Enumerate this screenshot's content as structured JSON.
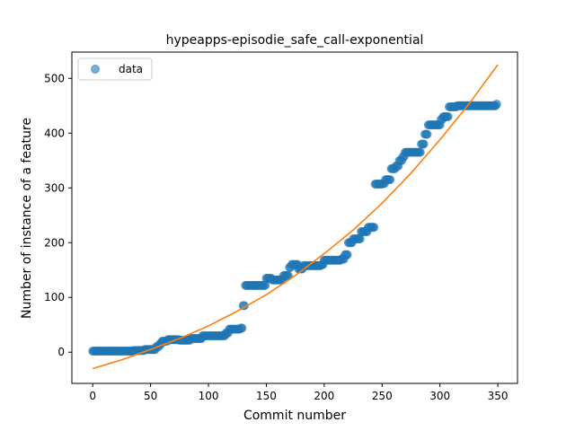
{
  "chart_data": {
    "type": "scatter",
    "title": "hypeapps-episodie_safe_call-exponential",
    "xlabel": "Commit number",
    "ylabel": "Number of instance of a feature",
    "xlim": [
      -18,
      367
    ],
    "ylim": [
      -57,
      548
    ],
    "xticks": [
      0,
      50,
      100,
      150,
      200,
      250,
      300,
      350
    ],
    "yticks": [
      0,
      100,
      200,
      300,
      400,
      500
    ],
    "grid": false,
    "legend_position": "upper-left",
    "legend": [
      {
        "label": "data",
        "marker": "circle",
        "color": "#1f77b4"
      }
    ],
    "data_color": "#1f77b4",
    "fit_color": "#ff7f0e",
    "data_steps": [
      [
        0,
        2
      ],
      [
        35,
        3
      ],
      [
        45,
        5
      ],
      [
        55,
        10
      ],
      [
        58,
        15
      ],
      [
        60,
        20
      ],
      [
        65,
        23
      ],
      [
        75,
        22
      ],
      [
        85,
        25
      ],
      [
        95,
        30
      ],
      [
        115,
        35
      ],
      [
        118,
        42
      ],
      [
        128,
        44
      ],
      [
        130,
        85
      ],
      [
        132,
        122
      ],
      [
        145,
        122
      ],
      [
        150,
        135
      ],
      [
        155,
        132
      ],
      [
        165,
        140
      ],
      [
        170,
        155
      ],
      [
        172,
        160
      ],
      [
        178,
        152
      ],
      [
        182,
        158
      ],
      [
        198,
        160
      ],
      [
        200,
        168
      ],
      [
        215,
        170
      ],
      [
        218,
        178
      ],
      [
        221,
        200
      ],
      [
        225,
        207
      ],
      [
        232,
        220
      ],
      [
        238,
        228
      ],
      [
        244,
        307
      ],
      [
        251,
        308
      ],
      [
        253,
        315
      ],
      [
        258,
        335
      ],
      [
        262,
        340
      ],
      [
        265,
        350
      ],
      [
        268,
        357
      ],
      [
        270,
        365
      ],
      [
        284,
        380
      ],
      [
        287,
        398
      ],
      [
        290,
        415
      ],
      [
        301,
        425
      ],
      [
        303,
        430
      ],
      [
        308,
        448
      ],
      [
        315,
        450
      ],
      [
        349,
        453
      ]
    ],
    "n_commits": 350,
    "fit": {
      "x": [
        0,
        25,
        50,
        75,
        100,
        125,
        150,
        175,
        200,
        225,
        250,
        275,
        300,
        325,
        350
      ],
      "y": [
        -30,
        -14,
        5,
        25,
        48,
        75,
        105,
        140,
        180,
        223,
        272,
        327,
        388,
        453,
        525
      ]
    }
  }
}
